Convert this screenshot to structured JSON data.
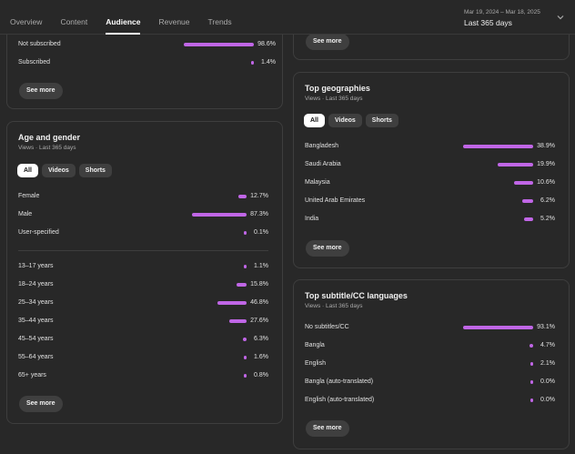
{
  "tabs": [
    "Overview",
    "Content",
    "Audience",
    "Revenue",
    "Trends"
  ],
  "active_tab": "Audience",
  "date_range": {
    "dates": "Mar 19, 2024 – Mar 18, 2025",
    "label": "Last 365 days"
  },
  "accent_color": "#c066e6",
  "see_more": "See more",
  "subscription": {
    "rows": [
      {
        "label": "Not subscribed",
        "value": "98.6%",
        "pct": 98.6
      },
      {
        "label": "Subscribed",
        "value": "1.4%",
        "pct": 1.4
      }
    ]
  },
  "age_gender": {
    "title": "Age and gender",
    "subtitle": "Views · Last 365 days",
    "chips": [
      "All",
      "Videos",
      "Shorts"
    ],
    "gender": [
      {
        "label": "Female",
        "value": "12.7%",
        "pct": 12.7
      },
      {
        "label": "Male",
        "value": "87.3%",
        "pct": 87.3
      },
      {
        "label": "User-specified",
        "value": "0.1%",
        "pct": 0.1
      }
    ],
    "ages": [
      {
        "label": "13–17 years",
        "value": "1.1%",
        "pct": 1.1
      },
      {
        "label": "18–24 years",
        "value": "15.8%",
        "pct": 15.8
      },
      {
        "label": "25–34 years",
        "value": "46.8%",
        "pct": 46.8
      },
      {
        "label": "35–44 years",
        "value": "27.6%",
        "pct": 27.6
      },
      {
        "label": "45–54 years",
        "value": "6.3%",
        "pct": 6.3
      },
      {
        "label": "55–64 years",
        "value": "1.6%",
        "pct": 1.6
      },
      {
        "label": "65+ years",
        "value": "0.8%",
        "pct": 0.8
      }
    ]
  },
  "geographies": {
    "title": "Top geographies",
    "subtitle": "Views · Last 365 days",
    "chips": [
      "All",
      "Videos",
      "Shorts"
    ],
    "rows": [
      {
        "label": "Bangladesh",
        "value": "38.9%",
        "pct": 38.9
      },
      {
        "label": "Saudi Arabia",
        "value": "19.9%",
        "pct": 19.9
      },
      {
        "label": "Malaysia",
        "value": "10.6%",
        "pct": 10.6
      },
      {
        "label": "United Arab Emirates",
        "value": "6.2%",
        "pct": 6.2
      },
      {
        "label": "India",
        "value": "5.2%",
        "pct": 5.2
      }
    ]
  },
  "subtitles": {
    "title": "Top subtitle/CC languages",
    "subtitle": "Views · Last 365 days",
    "rows": [
      {
        "label": "No subtitles/CC",
        "value": "93.1%",
        "pct": 93.1
      },
      {
        "label": "Bangla",
        "value": "4.7%",
        "pct": 4.7
      },
      {
        "label": "English",
        "value": "2.1%",
        "pct": 2.1
      },
      {
        "label": "Bangla (auto-translated)",
        "value": "0.0%",
        "pct": 0.0
      },
      {
        "label": "English (auto-translated)",
        "value": "0.0%",
        "pct": 0.0
      }
    ]
  }
}
